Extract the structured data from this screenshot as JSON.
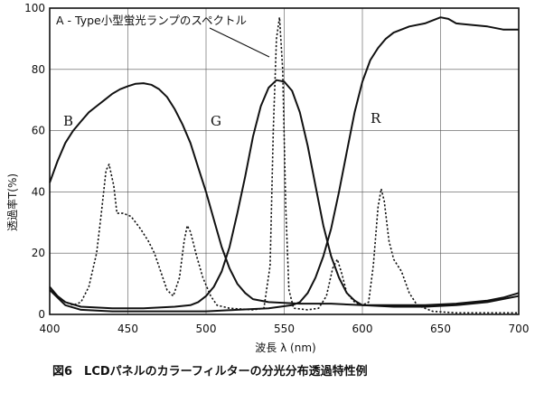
{
  "caption": "図6　LCDパネルのカラーフィルターの分光分布透過特性例",
  "colors": {
    "ink": "#111111",
    "background": "#ffffff"
  },
  "chart_data": {
    "type": "line",
    "title": "",
    "xlabel": "波長 λ (nm)",
    "ylabel": "透過率T(%)",
    "xlim": [
      400,
      700
    ],
    "ylim": [
      0,
      100
    ],
    "xticks": [
      400,
      450,
      500,
      550,
      600,
      650,
      700
    ],
    "yticks": [
      0,
      20,
      40,
      60,
      80,
      100
    ],
    "grid": true,
    "annotation": "A - Type小型蛍光ランプのスペクトル",
    "series": [
      {
        "name": "B",
        "style": "solid",
        "points": [
          [
            400,
            43
          ],
          [
            405,
            50
          ],
          [
            410,
            56
          ],
          [
            415,
            60
          ],
          [
            420,
            63
          ],
          [
            425,
            66
          ],
          [
            430,
            68
          ],
          [
            435,
            70
          ],
          [
            440,
            72
          ],
          [
            445,
            73.5
          ],
          [
            450,
            74.5
          ],
          [
            455,
            75.3
          ],
          [
            460,
            75.5
          ],
          [
            465,
            75
          ],
          [
            470,
            73.5
          ],
          [
            475,
            71
          ],
          [
            480,
            67
          ],
          [
            485,
            62
          ],
          [
            490,
            56
          ],
          [
            495,
            48
          ],
          [
            500,
            40
          ],
          [
            505,
            31
          ],
          [
            510,
            22
          ],
          [
            515,
            15
          ],
          [
            520,
            10
          ],
          [
            525,
            7
          ],
          [
            530,
            5
          ],
          [
            540,
            4
          ],
          [
            560,
            3.5
          ],
          [
            580,
            3.5
          ],
          [
            600,
            3
          ],
          [
            620,
            3
          ],
          [
            640,
            3
          ],
          [
            660,
            3.5
          ],
          [
            680,
            4.5
          ],
          [
            690,
            5.5
          ],
          [
            700,
            7
          ]
        ]
      },
      {
        "name": "G",
        "style": "solid",
        "points": [
          [
            400,
            9
          ],
          [
            405,
            6
          ],
          [
            410,
            4
          ],
          [
            420,
            2.5
          ],
          [
            440,
            2
          ],
          [
            460,
            2
          ],
          [
            480,
            2.5
          ],
          [
            490,
            3
          ],
          [
            495,
            4
          ],
          [
            500,
            6
          ],
          [
            505,
            9
          ],
          [
            510,
            14
          ],
          [
            515,
            22
          ],
          [
            520,
            33
          ],
          [
            525,
            45
          ],
          [
            530,
            58
          ],
          [
            535,
            68
          ],
          [
            540,
            74
          ],
          [
            545,
            76.5
          ],
          [
            550,
            76
          ],
          [
            555,
            73
          ],
          [
            560,
            66
          ],
          [
            565,
            55
          ],
          [
            570,
            42
          ],
          [
            575,
            29
          ],
          [
            580,
            19
          ],
          [
            585,
            12
          ],
          [
            590,
            7
          ],
          [
            595,
            4.5
          ],
          [
            600,
            3
          ],
          [
            620,
            2.5
          ],
          [
            640,
            2.5
          ],
          [
            660,
            3
          ],
          [
            680,
            4
          ],
          [
            700,
            6
          ]
        ]
      },
      {
        "name": "R",
        "style": "solid",
        "points": [
          [
            400,
            8
          ],
          [
            410,
            3
          ],
          [
            420,
            1.5
          ],
          [
            440,
            1
          ],
          [
            460,
            1
          ],
          [
            480,
            1
          ],
          [
            500,
            1
          ],
          [
            520,
            1.5
          ],
          [
            540,
            2
          ],
          [
            555,
            3
          ],
          [
            560,
            4
          ],
          [
            565,
            7
          ],
          [
            570,
            12
          ],
          [
            575,
            19
          ],
          [
            580,
            28
          ],
          [
            585,
            40
          ],
          [
            590,
            53
          ],
          [
            595,
            66
          ],
          [
            600,
            76
          ],
          [
            605,
            83
          ],
          [
            610,
            87
          ],
          [
            615,
            90
          ],
          [
            620,
            92
          ],
          [
            630,
            94
          ],
          [
            640,
            95
          ],
          [
            645,
            96
          ],
          [
            650,
            97
          ],
          [
            655,
            96.5
          ],
          [
            660,
            95
          ],
          [
            670,
            94.5
          ],
          [
            680,
            94
          ],
          [
            690,
            93
          ],
          [
            700,
            93
          ]
        ]
      },
      {
        "name": "A - Type小型蛍光ランプのスペクトル",
        "style": "dotted",
        "points": [
          [
            400,
            9
          ],
          [
            405,
            6
          ],
          [
            410,
            4
          ],
          [
            415,
            3
          ],
          [
            420,
            4
          ],
          [
            425,
            9
          ],
          [
            430,
            20
          ],
          [
            433,
            33
          ],
          [
            436,
            47
          ],
          [
            438,
            49
          ],
          [
            441,
            42
          ],
          [
            443,
            33
          ],
          [
            447,
            33
          ],
          [
            452,
            32
          ],
          [
            458,
            28
          ],
          [
            463,
            24
          ],
          [
            467,
            20
          ],
          [
            471,
            14
          ],
          [
            475,
            8
          ],
          [
            479,
            6
          ],
          [
            483,
            12
          ],
          [
            486,
            24
          ],
          [
            488,
            29
          ],
          [
            490,
            27
          ],
          [
            494,
            19
          ],
          [
            498,
            12
          ],
          [
            503,
            6
          ],
          [
            507,
            3
          ],
          [
            515,
            2
          ],
          [
            530,
            1.5
          ],
          [
            537,
            2
          ],
          [
            541,
            16
          ],
          [
            543,
            60
          ],
          [
            545,
            90
          ],
          [
            547,
            97
          ],
          [
            549,
            80
          ],
          [
            551,
            35
          ],
          [
            553,
            8
          ],
          [
            556,
            2
          ],
          [
            565,
            1.5
          ],
          [
            572,
            2
          ],
          [
            577,
            6
          ],
          [
            581,
            15
          ],
          [
            584,
            18
          ],
          [
            587,
            13
          ],
          [
            590,
            7
          ],
          [
            595,
            4
          ],
          [
            600,
            3
          ],
          [
            604,
            4
          ],
          [
            607,
            16
          ],
          [
            610,
            35
          ],
          [
            612,
            41
          ],
          [
            614,
            37
          ],
          [
            617,
            24
          ],
          [
            620,
            18
          ],
          [
            625,
            14
          ],
          [
            630,
            7
          ],
          [
            635,
            3
          ],
          [
            645,
            1
          ],
          [
            660,
            0.5
          ],
          [
            680,
            0.5
          ],
          [
            700,
            0.5
          ]
        ]
      }
    ]
  }
}
